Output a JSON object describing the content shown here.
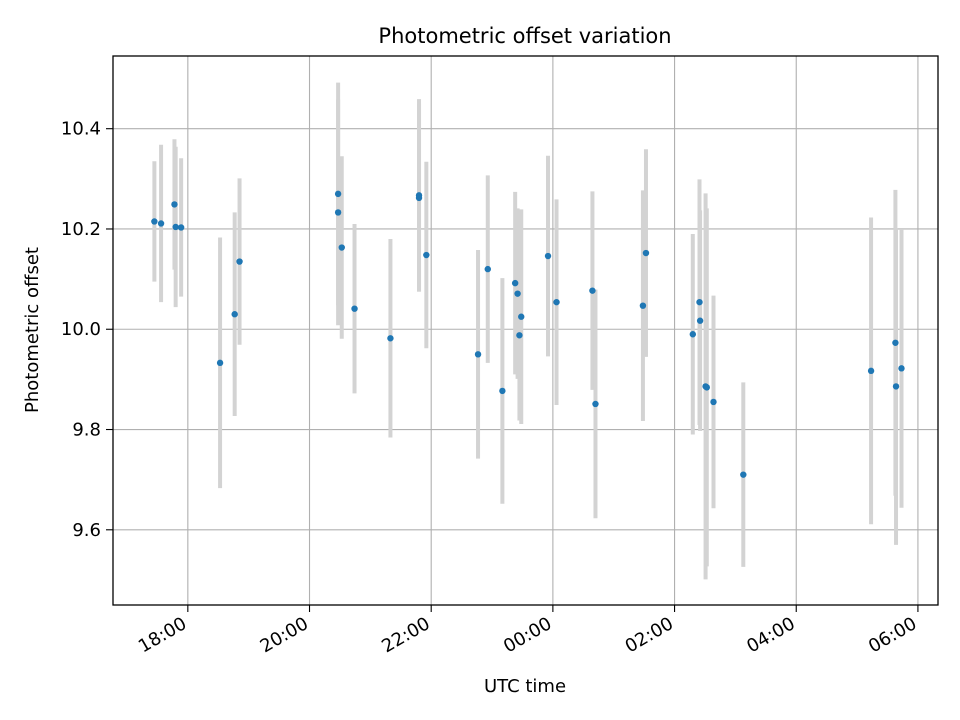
{
  "chart_data": {
    "type": "scatter",
    "title": "Photometric offset variation",
    "xlabel": "UTC time",
    "ylabel": "Photometric offset",
    "x_unit": "hours",
    "x_range": [
      16.77,
      30.33
    ],
    "ylim": [
      9.45,
      10.545
    ],
    "x_ticks": [
      {
        "value": 18,
        "label": "18:00"
      },
      {
        "value": 20,
        "label": "20:00"
      },
      {
        "value": 22,
        "label": "22:00"
      },
      {
        "value": 24,
        "label": "00:00"
      },
      {
        "value": 26,
        "label": "02:00"
      },
      {
        "value": 28,
        "label": "04:00"
      },
      {
        "value": 30,
        "label": "06:00"
      }
    ],
    "y_ticks": [
      {
        "value": 9.6,
        "label": "9.6"
      },
      {
        "value": 9.8,
        "label": "9.8"
      },
      {
        "value": 10.0,
        "label": "10.0"
      },
      {
        "value": 10.2,
        "label": "10.2"
      },
      {
        "value": 10.4,
        "label": "10.4"
      }
    ],
    "grid": true,
    "colors": {
      "marker": "#1f77b4",
      "errorbar": "#d3d3d3",
      "grid": "#b0b0b0"
    },
    "points": [
      {
        "x": 17.45,
        "y": 10.215,
        "err": 0.12
      },
      {
        "x": 17.56,
        "y": 10.211,
        "err": 0.157
      },
      {
        "x": 17.78,
        "y": 10.249,
        "err": 0.13
      },
      {
        "x": 17.8,
        "y": 10.204,
        "err": 0.16
      },
      {
        "x": 17.89,
        "y": 10.203,
        "err": 0.138
      },
      {
        "x": 18.53,
        "y": 9.933,
        "err": 0.25
      },
      {
        "x": 18.77,
        "y": 10.03,
        "err": 0.203
      },
      {
        "x": 18.85,
        "y": 10.135,
        "err": 0.166
      },
      {
        "x": 20.47,
        "y": 10.27,
        "err": 0.222
      },
      {
        "x": 20.47,
        "y": 10.233,
        "err": 0.225
      },
      {
        "x": 20.53,
        "y": 10.163,
        "err": 0.182
      },
      {
        "x": 20.74,
        "y": 10.041,
        "err": 0.169
      },
      {
        "x": 21.33,
        "y": 9.982,
        "err": 0.198
      },
      {
        "x": 21.8,
        "y": 10.267,
        "err": 0.192
      },
      {
        "x": 21.8,
        "y": 10.262,
        "err": 0.187
      },
      {
        "x": 21.92,
        "y": 10.148,
        "err": 0.186
      },
      {
        "x": 22.77,
        "y": 9.95,
        "err": 0.208
      },
      {
        "x": 22.93,
        "y": 10.12,
        "err": 0.187
      },
      {
        "x": 23.17,
        "y": 9.877,
        "err": 0.225
      },
      {
        "x": 23.38,
        "y": 10.092,
        "err": 0.182
      },
      {
        "x": 23.42,
        "y": 10.071,
        "err": 0.17
      },
      {
        "x": 23.45,
        "y": 9.988,
        "err": 0.17
      },
      {
        "x": 23.48,
        "y": 10.025,
        "err": 0.214
      },
      {
        "x": 23.92,
        "y": 10.146,
        "err": 0.2
      },
      {
        "x": 24.06,
        "y": 10.054,
        "err": 0.205
      },
      {
        "x": 24.65,
        "y": 10.077,
        "err": 0.198
      },
      {
        "x": 24.7,
        "y": 9.851,
        "err": 0.228
      },
      {
        "x": 25.48,
        "y": 10.047,
        "err": 0.23
      },
      {
        "x": 25.53,
        "y": 10.152,
        "err": 0.207
      },
      {
        "x": 26.3,
        "y": 9.99,
        "err": 0.2
      },
      {
        "x": 26.41,
        "y": 10.054,
        "err": 0.245
      },
      {
        "x": 26.42,
        "y": 10.017,
        "err": 0.22
      },
      {
        "x": 26.51,
        "y": 9.886,
        "err": 0.385
      },
      {
        "x": 26.53,
        "y": 9.884,
        "err": 0.357
      },
      {
        "x": 26.64,
        "y": 9.855,
        "err": 0.212
      },
      {
        "x": 27.13,
        "y": 9.71,
        "err": 0.184
      },
      {
        "x": 29.23,
        "y": 9.917,
        "err": 0.306
      },
      {
        "x": 29.63,
        "y": 9.973,
        "err": 0.305
      },
      {
        "x": 29.64,
        "y": 9.886,
        "err": 0.316
      },
      {
        "x": 29.73,
        "y": 9.922,
        "err": 0.278
      }
    ]
  }
}
